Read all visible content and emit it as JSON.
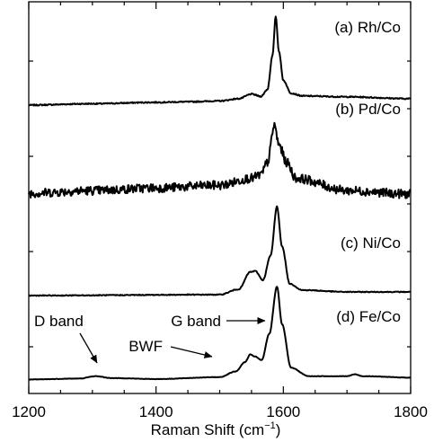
{
  "chart_data": {
    "type": "line",
    "xlabel_main": "Raman Shift (cm",
    "xlabel_sup": "−1",
    "xlabel_close": ")",
    "ylabel": "",
    "xlim": [
      1200,
      1800
    ],
    "xticks": [
      1200,
      1400,
      1600,
      1800
    ],
    "grid": false,
    "series": [
      {
        "name": "(a) Rh/Co",
        "noise": 0.4,
        "points": [
          [
            1200,
            1.0
          ],
          [
            1300,
            2.5
          ],
          [
            1400,
            4.0
          ],
          [
            1450,
            4.6
          ],
          [
            1500,
            5.5
          ],
          [
            1530,
            8.0
          ],
          [
            1550,
            13.0
          ],
          [
            1565,
            10.5
          ],
          [
            1575,
            18.0
          ],
          [
            1583,
            55.0
          ],
          [
            1588,
            98.0
          ],
          [
            1593,
            60.0
          ],
          [
            1600,
            28.0
          ],
          [
            1612,
            14.0
          ],
          [
            1630,
            11.0
          ],
          [
            1700,
            10.0
          ],
          [
            1800,
            8.0
          ]
        ]
      },
      {
        "name": "(b) Pd/Co",
        "noise": 3.2,
        "points": [
          [
            1200,
            3.0
          ],
          [
            1300,
            6.0
          ],
          [
            1400,
            9.0
          ],
          [
            1500,
            12.0
          ],
          [
            1550,
            20.0
          ],
          [
            1565,
            24.0
          ],
          [
            1575,
            38.0
          ],
          [
            1586,
            80.0
          ],
          [
            1593,
            58.0
          ],
          [
            1605,
            38.0
          ],
          [
            1620,
            20.0
          ],
          [
            1700,
            6.0
          ],
          [
            1800,
            2.0
          ]
        ]
      },
      {
        "name": "(c) Ni/Co",
        "noise": 0.3,
        "points": [
          [
            1200,
            1.0
          ],
          [
            1500,
            2.0
          ],
          [
            1530,
            8.0
          ],
          [
            1548,
            27.0
          ],
          [
            1556,
            28.0
          ],
          [
            1568,
            18.0
          ],
          [
            1580,
            45.0
          ],
          [
            1590,
            99.0
          ],
          [
            1598,
            55.0
          ],
          [
            1610,
            14.0
          ],
          [
            1630,
            7.0
          ],
          [
            1700,
            5.0
          ],
          [
            1800,
            5.0
          ]
        ]
      },
      {
        "name": "(d) Fe/Co",
        "noise": 0.15,
        "points": [
          [
            1200,
            1.5
          ],
          [
            1280,
            2.5
          ],
          [
            1305,
            5.0
          ],
          [
            1330,
            3.0
          ],
          [
            1400,
            2.0
          ],
          [
            1500,
            4.0
          ],
          [
            1525,
            10.0
          ],
          [
            1540,
            20.0
          ],
          [
            1548,
            28.0
          ],
          [
            1555,
            26.0
          ],
          [
            1566,
            22.0
          ],
          [
            1578,
            50.0
          ],
          [
            1590,
            100.0
          ],
          [
            1598,
            60.0
          ],
          [
            1612,
            14.0
          ],
          [
            1640,
            5.0
          ],
          [
            1700,
            5.0
          ],
          [
            1712,
            7.0
          ],
          [
            1725,
            5.0
          ],
          [
            1800,
            3.5
          ]
        ]
      }
    ],
    "annotations": [
      {
        "text": "D band",
        "points_to": [
          1305,
          5.0
        ]
      },
      {
        "text": "G band",
        "points_to": [
          1590,
          100.0
        ]
      },
      {
        "text": "BWF",
        "points_to": [
          1545,
          26.0
        ]
      }
    ]
  }
}
